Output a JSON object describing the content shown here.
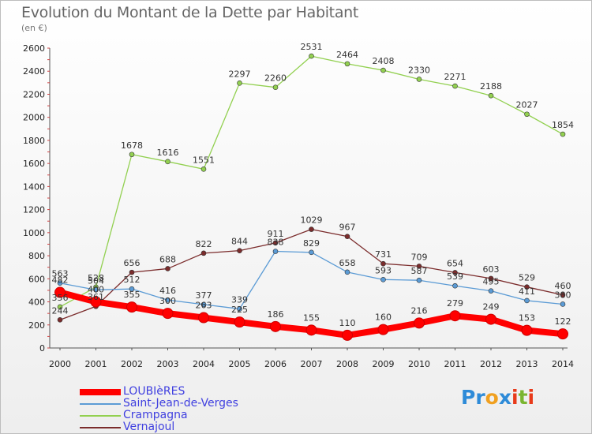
{
  "title": "Evolution du Montant de la Dette par Habitant",
  "subtitle": "(en €)",
  "brand": {
    "letters": [
      "P",
      "r",
      "o",
      "x",
      "i",
      "t",
      "i"
    ],
    "colors": [
      "#2e8bd8",
      "#2e8bd8",
      "#f0a020",
      "#2e8bd8",
      "#e83a1a",
      "#7ab530",
      "#e83a1a"
    ]
  },
  "chart_data": {
    "type": "line",
    "title": "Evolution du Montant de la Dette par Habitant",
    "unit": "(en €)",
    "x": [
      "2000",
      "2001",
      "2002",
      "2003",
      "2004",
      "2005",
      "2006",
      "2007",
      "2008",
      "2009",
      "2010",
      "2011",
      "2012",
      "2013",
      "2014"
    ],
    "ylim": [
      0,
      2600
    ],
    "yticks": [
      0,
      200,
      400,
      600,
      800,
      1000,
      1200,
      1400,
      1600,
      1800,
      2000,
      2200,
      2400,
      2600
    ],
    "grid": false,
    "legend": "bottom-left",
    "series": [
      {
        "name": "LOUBIèRES",
        "color": "#ff0000",
        "values": [
          482,
          400,
          355,
          300,
          263,
          225,
          186,
          155,
          110,
          160,
          216,
          279,
          249,
          153,
          122
        ]
      },
      {
        "name": "Saint-Jean-de-Verges",
        "color": "#5b9bd5",
        "values": [
          563,
          504,
          512,
          416,
          377,
          339,
          838,
          829,
          658,
          593,
          587,
          539,
          495,
          411,
          380
        ]
      },
      {
        "name": "Crampagna",
        "color": "#92d050",
        "values": [
          356,
          528,
          1678,
          1616,
          1551,
          2297,
          2260,
          2531,
          2464,
          2408,
          2330,
          2271,
          2188,
          2027,
          1854
        ]
      },
      {
        "name": "Vernajoul",
        "color": "#7b2c2c",
        "values": [
          244,
          361,
          656,
          688,
          822,
          844,
          911,
          1029,
          967,
          731,
          709,
          654,
          603,
          529,
          460
        ]
      }
    ]
  }
}
